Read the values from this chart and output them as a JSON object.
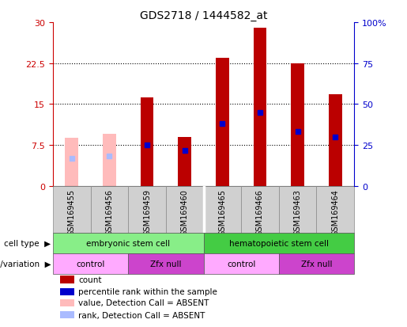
{
  "title": "GDS2718 / 1444582_at",
  "samples": [
    "GSM169455",
    "GSM169456",
    "GSM169459",
    "GSM169460",
    "GSM169465",
    "GSM169466",
    "GSM169463",
    "GSM169464"
  ],
  "bar_values": [
    null,
    null,
    16.2,
    9.0,
    23.5,
    29.0,
    22.5,
    16.8
  ],
  "bar_absent_values": [
    8.8,
    9.5,
    null,
    null,
    null,
    null,
    null,
    null
  ],
  "percentile_values": [
    null,
    null,
    7.5,
    6.5,
    11.5,
    13.5,
    10.0,
    9.0
  ],
  "percentile_absent_values": [
    5.0,
    5.5,
    null,
    null,
    null,
    null,
    null,
    null
  ],
  "ylim": [
    0,
    30
  ],
  "yticks": [
    0,
    7.5,
    15,
    22.5,
    30
  ],
  "ytick_labels": [
    "0",
    "7.5",
    "15",
    "22.5",
    "30"
  ],
  "y2tick_labels": [
    "0",
    "25",
    "50",
    "75",
    "100%"
  ],
  "left_axis_color": "#cc0000",
  "right_axis_color": "#0000cc",
  "bar_color": "#bb0000",
  "bar_absent_color": "#ffbbbb",
  "percentile_color": "#0000cc",
  "percentile_absent_color": "#aabbff",
  "cell_types": [
    {
      "label": "embryonic stem cell",
      "start": 0,
      "end": 4,
      "color": "#88ee88"
    },
    {
      "label": "hematopoietic stem cell",
      "start": 4,
      "end": 8,
      "color": "#44cc44"
    }
  ],
  "genotypes": [
    {
      "label": "control",
      "start": 0,
      "end": 2,
      "color": "#ffaaff"
    },
    {
      "label": "Zfx null",
      "start": 2,
      "end": 4,
      "color": "#cc44cc"
    },
    {
      "label": "control",
      "start": 4,
      "end": 6,
      "color": "#ffaaff"
    },
    {
      "label": "Zfx null",
      "start": 6,
      "end": 8,
      "color": "#cc44cc"
    }
  ],
  "legend_items": [
    {
      "color": "#bb0000",
      "label": "count"
    },
    {
      "color": "#0000cc",
      "label": "percentile rank within the sample"
    },
    {
      "color": "#ffbbbb",
      "label": "value, Detection Call = ABSENT"
    },
    {
      "color": "#aabbff",
      "label": "rank, Detection Call = ABSENT"
    }
  ],
  "bar_width": 0.35,
  "grid_color": "black",
  "tick_bg_color": "#d0d0d0",
  "tick_border_color": "#888888"
}
